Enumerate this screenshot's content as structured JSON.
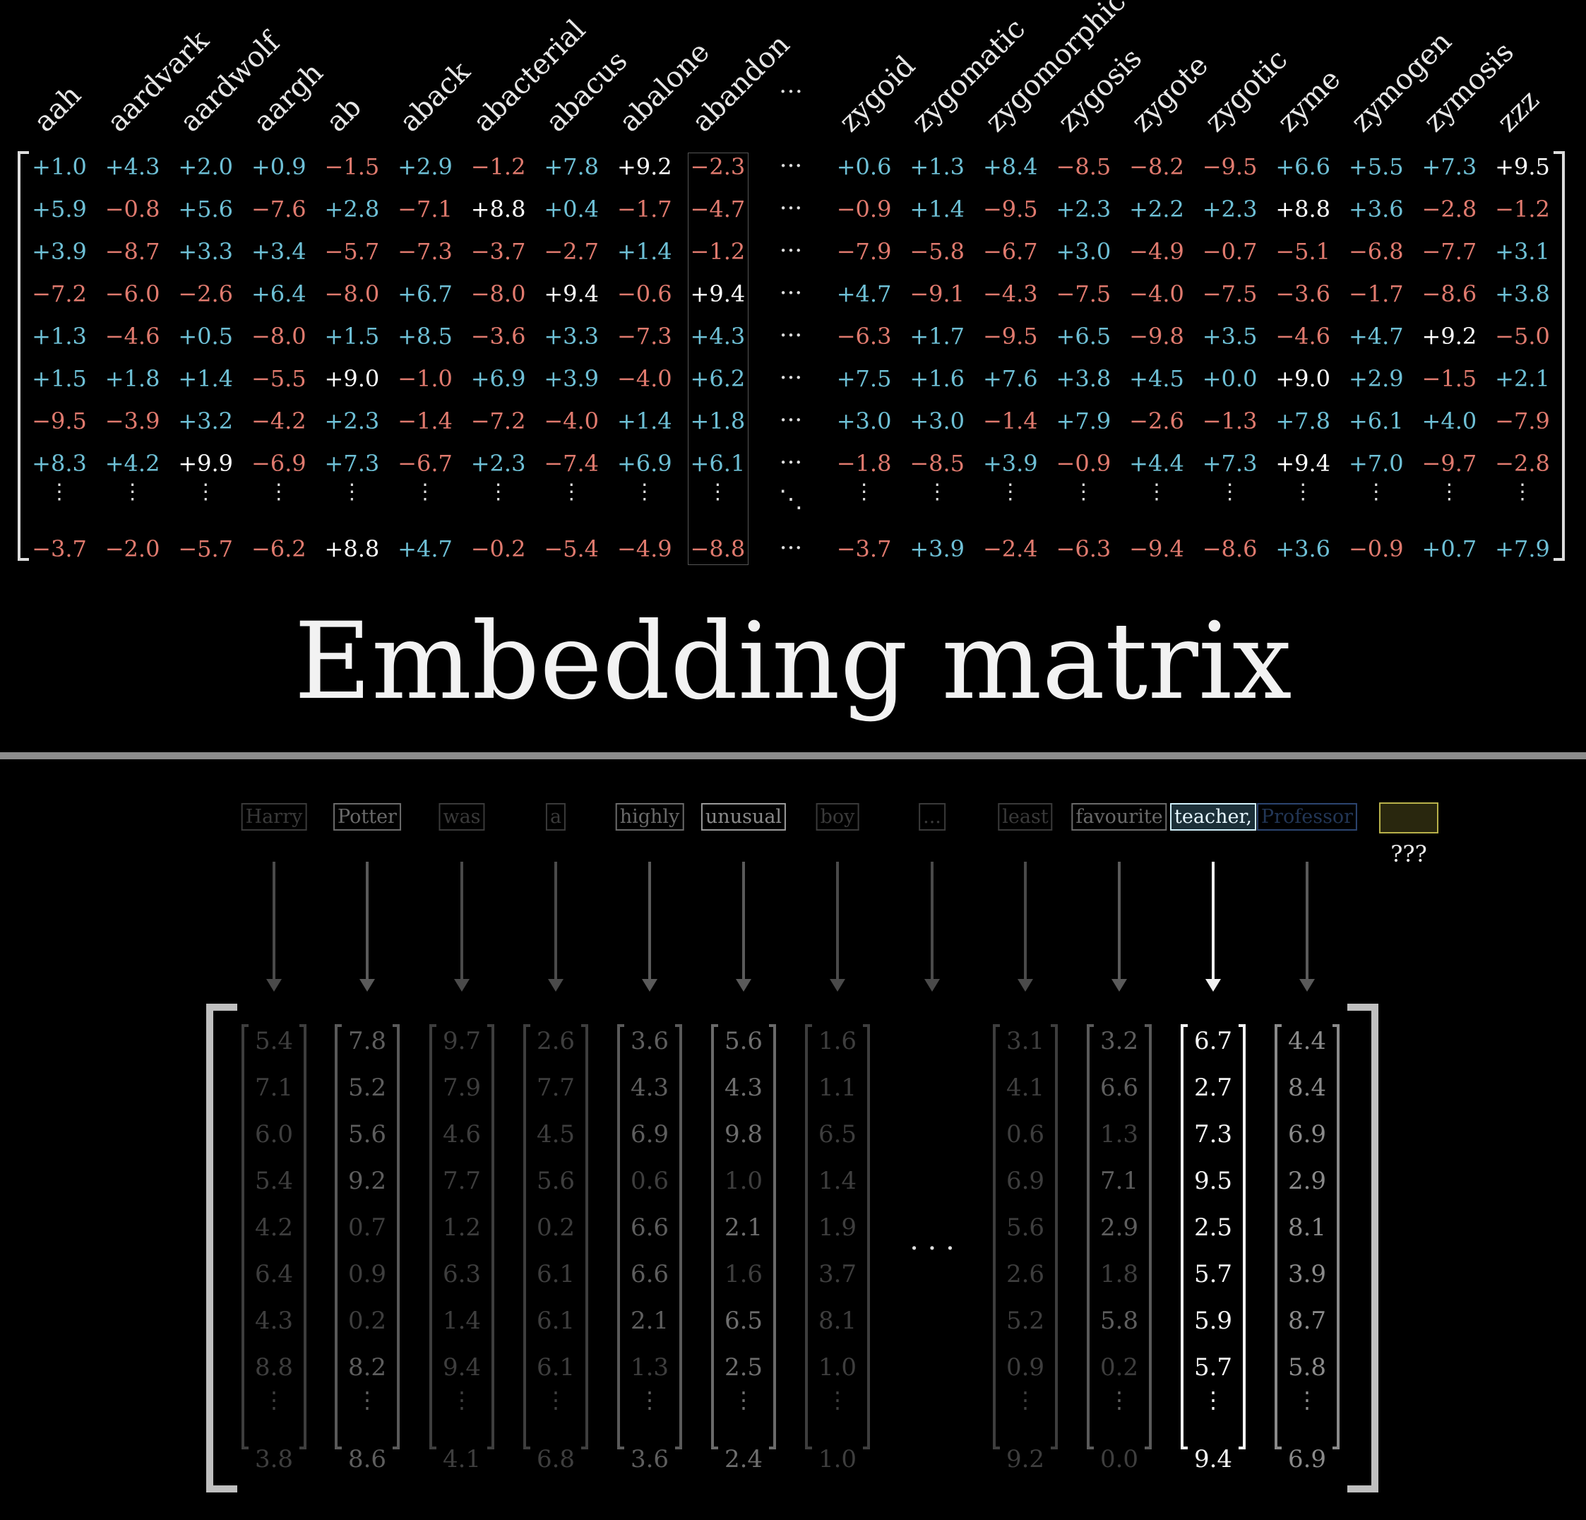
{
  "embedding": {
    "words": [
      "aah",
      "aardvark",
      "aardwolf",
      "aargh",
      "ab",
      "aback",
      "abacterial",
      "abacus",
      "abalone",
      "abandon",
      "…",
      "zygoid",
      "zygomatic",
      "zygomorphic",
      "zygosis",
      "zygote",
      "zygotic",
      "zyme",
      "zymogen",
      "zymosis",
      "zzz"
    ],
    "rows": [
      [
        "+1.0",
        "+4.3",
        "+2.0",
        "+0.9",
        "−1.5",
        "+2.9",
        "−1.2",
        "+7.8",
        "+9.2",
        "−2.3",
        "+0.6",
        "+1.3",
        "+8.4",
        "−8.5",
        "−8.2",
        "−9.5",
        "+6.6",
        "+5.5",
        "+7.3",
        "+9.5"
      ],
      [
        "+5.9",
        "−0.8",
        "+5.6",
        "−7.6",
        "+2.8",
        "−7.1",
        "+8.8",
        "+0.4",
        "−1.7",
        "−4.7",
        "−0.9",
        "+1.4",
        "−9.5",
        "+2.3",
        "+2.2",
        "+2.3",
        "+8.8",
        "+3.6",
        "−2.8",
        "−1.2"
      ],
      [
        "+3.9",
        "−8.7",
        "+3.3",
        "+3.4",
        "−5.7",
        "−7.3",
        "−3.7",
        "−2.7",
        "+1.4",
        "−1.2",
        "−7.9",
        "−5.8",
        "−6.7",
        "+3.0",
        "−4.9",
        "−0.7",
        "−5.1",
        "−6.8",
        "−7.7",
        "+3.1"
      ],
      [
        "−7.2",
        "−6.0",
        "−2.6",
        "+6.4",
        "−8.0",
        "+6.7",
        "−8.0",
        "+9.4",
        "−0.6",
        "+9.4",
        "+4.7",
        "−9.1",
        "−4.3",
        "−7.5",
        "−4.0",
        "−7.5",
        "−3.6",
        "−1.7",
        "−8.6",
        "+3.8"
      ],
      [
        "+1.3",
        "−4.6",
        "+0.5",
        "−8.0",
        "+1.5",
        "+8.5",
        "−3.6",
        "+3.3",
        "−7.3",
        "+4.3",
        "−6.3",
        "+1.7",
        "−9.5",
        "+6.5",
        "−9.8",
        "+3.5",
        "−4.6",
        "+4.7",
        "+9.2",
        "−5.0"
      ],
      [
        "+1.5",
        "+1.8",
        "+1.4",
        "−5.5",
        "+9.0",
        "−1.0",
        "+6.9",
        "+3.9",
        "−4.0",
        "+6.2",
        "+7.5",
        "+1.6",
        "+7.6",
        "+3.8",
        "+4.5",
        "+0.0",
        "+9.0",
        "+2.9",
        "−1.5",
        "+2.1"
      ],
      [
        "−9.5",
        "−3.9",
        "+3.2",
        "−4.2",
        "+2.3",
        "−1.4",
        "−7.2",
        "−4.0",
        "+1.4",
        "+1.8",
        "+3.0",
        "+3.0",
        "−1.4",
        "+7.9",
        "−2.6",
        "−1.3",
        "+7.8",
        "+6.1",
        "+4.0",
        "−7.9"
      ],
      [
        "+8.3",
        "+4.2",
        "+9.9",
        "−6.9",
        "+7.3",
        "−6.7",
        "+2.3",
        "−7.4",
        "+6.9",
        "+6.1",
        "−1.8",
        "−8.5",
        "+3.9",
        "−0.9",
        "+4.4",
        "+7.3",
        "+9.4",
        "+7.0",
        "−9.7",
        "−2.8"
      ],
      [
        "−3.7",
        "−2.0",
        "−5.7",
        "−6.2",
        "+8.8",
        "+4.7",
        "−0.2",
        "−5.4",
        "−4.9",
        "−8.8",
        "−3.7",
        "+3.9",
        "−2.4",
        "−6.3",
        "−9.4",
        "−8.6",
        "+3.6",
        "−0.9",
        "+0.7",
        "+7.9"
      ]
    ],
    "title": "Embedding matrix",
    "colors": {
      "positive": "#6ec0d6",
      "negative": "#e07a6e"
    }
  },
  "context": {
    "tokens": [
      {
        "text": "Harry",
        "state": "dim"
      },
      {
        "text": "Potter",
        "state": "mid"
      },
      {
        "text": "was",
        "state": "dim"
      },
      {
        "text": "a",
        "state": "dim"
      },
      {
        "text": "highly",
        "state": "mid"
      },
      {
        "text": "unusual",
        "state": "mid2"
      },
      {
        "text": "boy",
        "state": "dim"
      },
      {
        "text": "...",
        "state": "dim"
      },
      {
        "text": "least",
        "state": "dim"
      },
      {
        "text": "favourite",
        "state": "mid"
      },
      {
        "text": "teacher,",
        "state": "active"
      },
      {
        "text": "Professor",
        "state": "blue"
      }
    ],
    "unknown_label": "???",
    "vectors": [
      {
        "values": [
          "5.4",
          "7.1",
          "6.0",
          "5.4",
          "4.2",
          "6.4",
          "4.3",
          "8.8",
          "3.8"
        ],
        "state": "dim"
      },
      {
        "values": [
          "7.8",
          "5.2",
          "5.6",
          "9.2",
          "0.7",
          "0.9",
          "0.2",
          "8.2",
          "8.6"
        ],
        "state": "mid"
      },
      {
        "values": [
          "9.7",
          "7.9",
          "4.6",
          "7.7",
          "1.2",
          "6.3",
          "1.4",
          "9.4",
          "4.1"
        ],
        "state": "dim"
      },
      {
        "values": [
          "2.6",
          "7.7",
          "4.5",
          "5.6",
          "0.2",
          "6.1",
          "6.1",
          "6.1",
          "6.8"
        ],
        "state": "dim"
      },
      {
        "values": [
          "3.6",
          "4.3",
          "6.9",
          "0.6",
          "6.6",
          "6.6",
          "2.1",
          "1.3",
          "3.6"
        ],
        "state": "mid"
      },
      {
        "values": [
          "5.6",
          "4.3",
          "9.8",
          "1.0",
          "2.1",
          "1.6",
          "6.5",
          "2.5",
          "2.4"
        ],
        "state": "mid2"
      },
      {
        "values": [
          "1.6",
          "1.1",
          "6.5",
          "1.4",
          "1.9",
          "3.7",
          "8.1",
          "1.0",
          "1.0"
        ],
        "state": "dim"
      },
      null,
      {
        "values": [
          "3.1",
          "4.1",
          "0.6",
          "6.9",
          "5.6",
          "2.6",
          "5.2",
          "0.9",
          "9.2"
        ],
        "state": "dim"
      },
      {
        "values": [
          "3.2",
          "6.6",
          "1.3",
          "7.1",
          "2.9",
          "1.8",
          "5.8",
          "0.2",
          "0.0"
        ],
        "state": "mid"
      },
      {
        "values": [
          "6.7",
          "2.7",
          "7.3",
          "9.5",
          "2.5",
          "5.7",
          "5.9",
          "5.7",
          "9.4"
        ],
        "state": "active"
      },
      {
        "values": [
          "4.4",
          "8.4",
          "6.9",
          "2.9",
          "8.1",
          "3.9",
          "8.7",
          "5.8",
          "6.9"
        ],
        "state": "light"
      }
    ]
  }
}
